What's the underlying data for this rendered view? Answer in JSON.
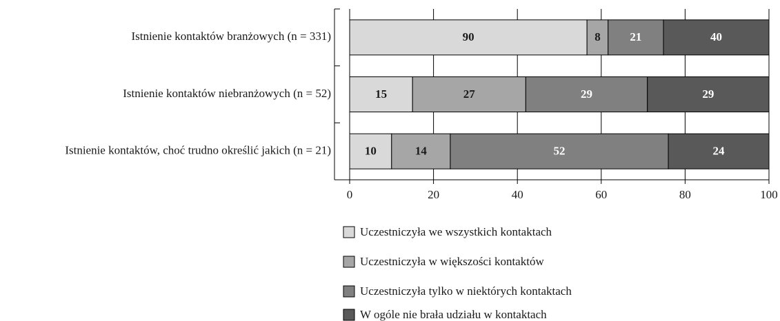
{
  "chart_data": {
    "type": "bar",
    "orientation": "horizontal",
    "stacking": "percent",
    "categories": [
      "Istnienie kontaktów branżowych (n = 331)",
      "Istnienie kontaktów niebranżowych (n = 52)",
      "Istnienie kontaktów, choć trudno określić jakich (n = 21)"
    ],
    "series": [
      {
        "name": "Uczestniczyła we wszystkich kontaktach",
        "color": "#d9d9d9",
        "label_color": "#1a1a1a",
        "values": [
          90,
          15,
          10
        ]
      },
      {
        "name": "Uczestniczyła w większości kontaktów",
        "color": "#a6a6a6",
        "label_color": "#1a1a1a",
        "values": [
          8,
          27,
          14
        ]
      },
      {
        "name": "Uczestniczyła tylko w niektórych kontaktach",
        "color": "#808080",
        "label_color": "#ffffff",
        "values": [
          21,
          29,
          52
        ]
      },
      {
        "name": "W ogóle nie brała udziału w kontaktach",
        "color": "#595959",
        "label_color": "#ffffff",
        "values": [
          40,
          29,
          24
        ]
      }
    ],
    "xlim": [
      0,
      100
    ],
    "xticks": [
      0,
      20,
      40,
      60,
      80,
      100
    ],
    "grid": true,
    "legend": "bottom"
  }
}
